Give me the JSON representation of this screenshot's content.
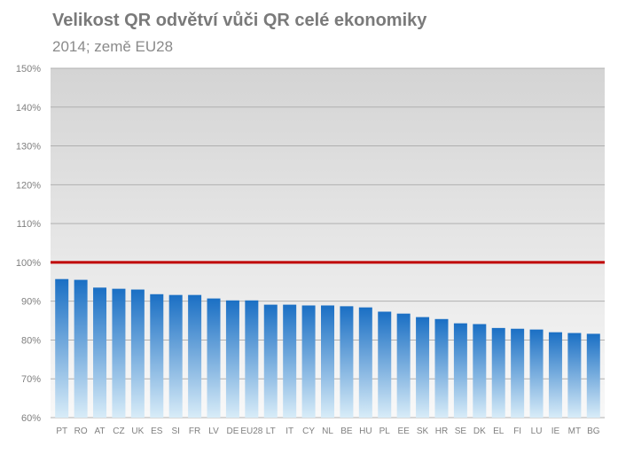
{
  "chart_data": {
    "type": "bar",
    "title": "Velikost QR odvětví vůči QR celé ekonomiky",
    "subtitle": "2014; země EU28",
    "xlabel": "",
    "ylabel": "",
    "ylim": [
      60,
      150
    ],
    "yticks": [
      150,
      140,
      130,
      120,
      110,
      100,
      90,
      80,
      70,
      60
    ],
    "ytick_labels": [
      "150%",
      "140%",
      "130%",
      "120%",
      "110%",
      "100%",
      "90%",
      "80%",
      "70%",
      "60%"
    ],
    "grid": true,
    "reference_line": 100,
    "categories": [
      "PT",
      "RO",
      "AT",
      "CZ",
      "UK",
      "ES",
      "SI",
      "FR",
      "LV",
      "DE",
      "EU28",
      "LT",
      "IT",
      "CY",
      "NL",
      "BE",
      "HU",
      "PL",
      "EE",
      "SK",
      "HR",
      "SE",
      "DK",
      "EL",
      "FI",
      "LU",
      "IE",
      "MT",
      "BG"
    ],
    "values": [
      95.7,
      95.5,
      93.5,
      93.2,
      93.0,
      91.8,
      91.6,
      91.6,
      90.7,
      90.2,
      90.2,
      89.1,
      89.1,
      88.9,
      88.9,
      88.7,
      88.4,
      87.3,
      86.8,
      85.9,
      85.4,
      84.3,
      84.1,
      83.1,
      82.9,
      82.7,
      82.0,
      81.8,
      81.6
    ]
  },
  "colors": {
    "bar_top": "#1a6fc4",
    "bar_bottom": "#d8ecf8",
    "reference_line": "#c00000",
    "grid": "#b0b0b0",
    "plot_bg_top": "#d4d4d4",
    "plot_bg_bottom": "#f8f8f8",
    "title": "#7a7a7a"
  }
}
